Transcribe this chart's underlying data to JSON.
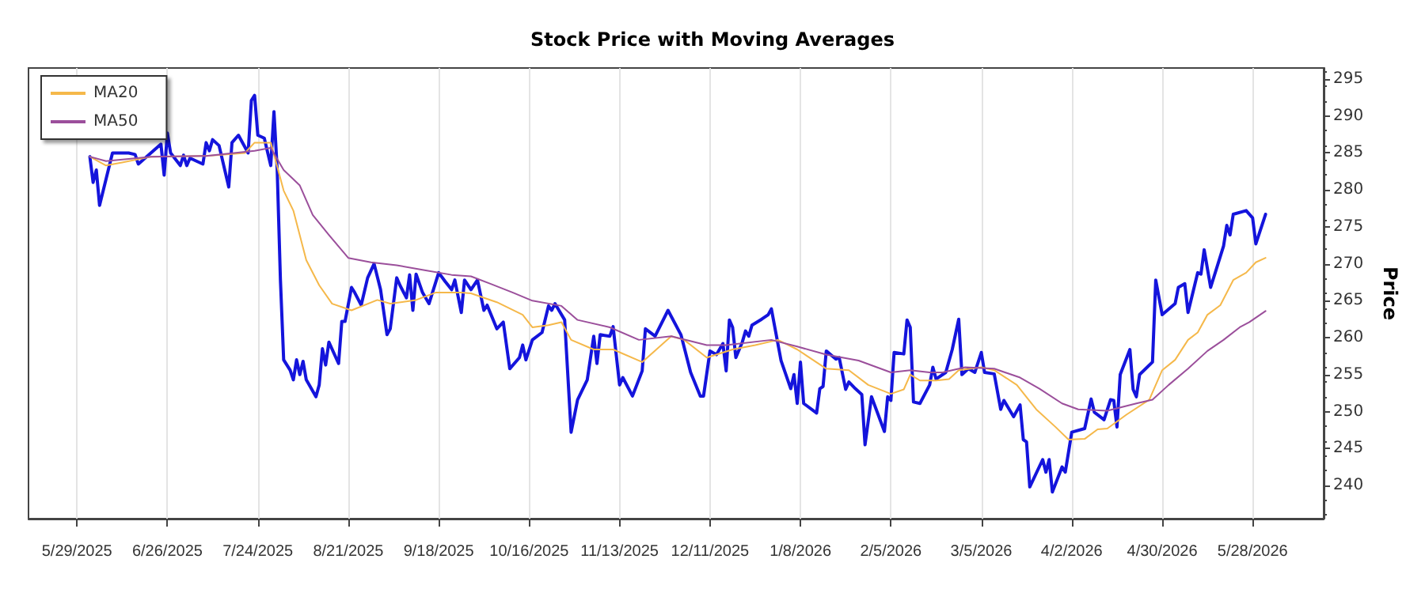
{
  "chart_data": {
    "type": "line",
    "title": "Stock Price with Moving Averages",
    "ylabel": "Price",
    "xlim": [
      "2025-05-14",
      "2026-06-19"
    ],
    "xticks": [
      {
        "value": "2025-05-29",
        "label": "5/29/2025"
      },
      {
        "value": "2025-06-26",
        "label": "6/26/2025"
      },
      {
        "value": "2025-07-24",
        "label": "7/24/2025"
      },
      {
        "value": "2025-08-21",
        "label": "8/21/2025"
      },
      {
        "value": "2025-09-18",
        "label": "9/18/2025"
      },
      {
        "value": "2025-10-16",
        "label": "10/16/2025"
      },
      {
        "value": "2025-11-13",
        "label": "11/13/2025"
      },
      {
        "value": "2025-12-11",
        "label": "12/11/2025"
      },
      {
        "value": "2026-01-08",
        "label": "1/8/2026"
      },
      {
        "value": "2026-02-05",
        "label": "2/5/2026"
      },
      {
        "value": "2026-03-05",
        "label": "3/5/2026"
      },
      {
        "value": "2026-04-02",
        "label": "4/2/2026"
      },
      {
        "value": "2026-04-30",
        "label": "4/30/2026"
      },
      {
        "value": "2026-05-28",
        "label": "5/28/2026"
      }
    ],
    "ylim": [
      235.5,
      296.5
    ],
    "yticks": [
      240,
      245,
      250,
      255,
      260,
      265,
      270,
      275,
      280,
      285,
      290,
      295
    ],
    "grid": "x",
    "legend": "top left",
    "marker": "none",
    "line_style": "solid",
    "series": [
      {
        "color": "#1414dc",
        "x": [
          "2025-06-02",
          "2025-06-03",
          "2025-06-04",
          "2025-06-05",
          "2025-06-09",
          "2025-06-12",
          "2025-06-14",
          "2025-06-16",
          "2025-06-17",
          "2025-06-24",
          "2025-06-25",
          "2025-06-26",
          "2025-06-27",
          "2025-06-30",
          "2025-07-01",
          "2025-07-02",
          "2025-07-03",
          "2025-07-07",
          "2025-07-08",
          "2025-07-09",
          "2025-07-10",
          "2025-07-12",
          "2025-07-15",
          "2025-07-16",
          "2025-07-18",
          "2025-07-21",
          "2025-07-22",
          "2025-07-23",
          "2025-07-24",
          "2025-07-26",
          "2025-07-28",
          "2025-07-29",
          "2025-07-30",
          "2025-07-31",
          "2025-08-01",
          "2025-08-03",
          "2025-08-04",
          "2025-08-05",
          "2025-08-06",
          "2025-08-07",
          "2025-08-08",
          "2025-08-11",
          "2025-08-12",
          "2025-08-13",
          "2025-08-14",
          "2025-08-15",
          "2025-08-18",
          "2025-08-19",
          "2025-08-20",
          "2025-08-22",
          "2025-08-23",
          "2025-08-25",
          "2025-08-27",
          "2025-08-29",
          "2025-08-31",
          "2025-09-02",
          "2025-09-03",
          "2025-09-05",
          "2025-09-06",
          "2025-09-08",
          "2025-09-09",
          "2025-09-10",
          "2025-09-11",
          "2025-09-13",
          "2025-09-15",
          "2025-09-18",
          "2025-09-20",
          "2025-09-22",
          "2025-09-23",
          "2025-09-25",
          "2025-09-26",
          "2025-09-28",
          "2025-09-30",
          "2025-10-02",
          "2025-10-03",
          "2025-10-06",
          "2025-10-08",
          "2025-10-10",
          "2025-10-13",
          "2025-10-14",
          "2025-10-15",
          "2025-10-17",
          "2025-10-20",
          "2025-10-22",
          "2025-10-23",
          "2025-10-24",
          "2025-10-27",
          "2025-10-29",
          "2025-10-31",
          "2025-11-03",
          "2025-11-05",
          "2025-11-06",
          "2025-11-07",
          "2025-11-10",
          "2025-11-11",
          "2025-11-13",
          "2025-11-14",
          "2025-11-17",
          "2025-11-20",
          "2025-11-21",
          "2025-11-24",
          "2025-11-28",
          "2025-12-02",
          "2025-12-05",
          "2025-12-08",
          "2025-12-09",
          "2025-12-11",
          "2025-12-13",
          "2025-12-15",
          "2025-12-16",
          "2025-12-17",
          "2025-12-18",
          "2025-12-19",
          "2025-12-21",
          "2025-12-22",
          "2025-12-23",
          "2025-12-24",
          "2025-12-27",
          "2025-12-29",
          "2025-12-30",
          "2026-01-02",
          "2026-01-05",
          "2026-01-06",
          "2026-01-07",
          "2026-01-08",
          "2026-01-09",
          "2026-01-13",
          "2026-01-14",
          "2026-01-15",
          "2026-01-16",
          "2026-01-19",
          "2026-01-20",
          "2026-01-22",
          "2026-01-23",
          "2026-01-25",
          "2026-01-27",
          "2026-01-28",
          "2026-01-30",
          "2026-02-03",
          "2026-02-04",
          "2026-02-05",
          "2026-02-06",
          "2026-02-09",
          "2026-02-10",
          "2026-02-11",
          "2026-02-12",
          "2026-02-14",
          "2026-02-17",
          "2026-02-18",
          "2026-02-19",
          "2026-02-22",
          "2026-02-24",
          "2026-02-26",
          "2026-02-27",
          "2026-03-01",
          "2026-03-03",
          "2026-03-05",
          "2026-03-06",
          "2026-03-09",
          "2026-03-11",
          "2026-03-12",
          "2026-03-15",
          "2026-03-17",
          "2026-03-18",
          "2026-03-19",
          "2026-03-20",
          "2026-03-24",
          "2026-03-25",
          "2026-03-26",
          "2026-03-27",
          "2026-03-30",
          "2026-03-31",
          "2026-04-02",
          "2026-04-06",
          "2026-04-08",
          "2026-04-09",
          "2026-04-12",
          "2026-04-14",
          "2026-04-15",
          "2026-04-16",
          "2026-04-17",
          "2026-04-20",
          "2026-04-21",
          "2026-04-22",
          "2026-04-23",
          "2026-04-27",
          "2026-04-28",
          "2026-04-30",
          "2026-05-04",
          "2026-05-05",
          "2026-05-07",
          "2026-05-08",
          "2026-05-11",
          "2026-05-12",
          "2026-05-13",
          "2026-05-15",
          "2026-05-19",
          "2026-05-20",
          "2026-05-21",
          "2026-05-22",
          "2026-05-26",
          "2026-05-28",
          "2026-05-29",
          "2026-06-01"
        ],
        "values": [
          284.5,
          281.0,
          282.7,
          277.9,
          285.0,
          285.0,
          285.0,
          284.8,
          283.5,
          286.2,
          282.0,
          287.7,
          285.0,
          283.3,
          284.7,
          283.3,
          284.3,
          283.5,
          286.4,
          285.3,
          286.8,
          286.0,
          280.4,
          286.4,
          287.4,
          285.0,
          292.1,
          292.8,
          287.4,
          287.0,
          283.3,
          290.6,
          282.7,
          267.8,
          257.0,
          255.6,
          254.3,
          257.0,
          255.0,
          256.8,
          254.3,
          252.0,
          253.6,
          258.5,
          256.3,
          259.4,
          256.5,
          262.2,
          262.2,
          266.8,
          266.1,
          264.4,
          268.1,
          270.0,
          266.5,
          260.4,
          261.2,
          268.1,
          267.1,
          265.4,
          268.5,
          263.7,
          268.6,
          266.1,
          264.6,
          268.8,
          267.6,
          266.5,
          267.8,
          263.4,
          267.8,
          266.5,
          267.8,
          263.7,
          264.4,
          261.2,
          262.1,
          255.8,
          257.3,
          259.0,
          257.0,
          259.7,
          260.7,
          264.3,
          263.7,
          264.6,
          262.4,
          247.2,
          251.6,
          254.3,
          260.2,
          256.5,
          260.4,
          260.2,
          261.5,
          253.6,
          254.6,
          252.1,
          255.5,
          261.2,
          260.2,
          263.7,
          260.4,
          255.3,
          252.1,
          252.1,
          258.2,
          257.7,
          259.2,
          255.5,
          262.4,
          261.4,
          257.3,
          259.4,
          260.9,
          260.2,
          261.7,
          262.5,
          263.1,
          263.9,
          256.9,
          253.1,
          255.0,
          251.1,
          256.7,
          251.1,
          249.8,
          253.1,
          253.4,
          258.2,
          257.1,
          257.3,
          253.0,
          254.0,
          253.1,
          252.3,
          245.5,
          252.0,
          247.3,
          252.0,
          251.5,
          258.0,
          257.8,
          262.4,
          261.4,
          251.3,
          251.1,
          253.6,
          256.0,
          254.4,
          255.3,
          258.4,
          262.5,
          255.0,
          255.8,
          255.3,
          258.0,
          255.3,
          255.1,
          250.3,
          251.5,
          249.3,
          250.9,
          246.2,
          245.9,
          239.8,
          243.5,
          241.8,
          243.5,
          239.1,
          242.5,
          241.8,
          247.2,
          247.7,
          251.7,
          249.9,
          248.9,
          251.6,
          251.5,
          247.9,
          255.0,
          258.4,
          253.0,
          252.0,
          255.0,
          256.7,
          267.8,
          263.1,
          264.6,
          266.8,
          267.3,
          263.4,
          268.8,
          268.6,
          271.9,
          266.8,
          272.4,
          275.2,
          273.9,
          276.7,
          277.2,
          276.2,
          272.7,
          276.7
        ]
      },
      {
        "name": "MA20",
        "color": "#f5b84a",
        "x": [
          "2025-06-02",
          "2025-06-07",
          "2025-06-12",
          "2025-06-21",
          "2025-07-08",
          "2025-07-20",
          "2025-07-23",
          "2025-07-28",
          "2025-08-01",
          "2025-08-04",
          "2025-08-08",
          "2025-08-12",
          "2025-08-16",
          "2025-08-22",
          "2025-08-30",
          "2025-09-03",
          "2025-09-11",
          "2025-09-17",
          "2025-09-25",
          "2025-09-28",
          "2025-10-06",
          "2025-10-14",
          "2025-10-17",
          "2025-10-22",
          "2025-10-26",
          "2025-10-29",
          "2025-11-05",
          "2025-11-11",
          "2025-11-20",
          "2025-11-29",
          "2025-12-03",
          "2025-12-10",
          "2025-12-18",
          "2025-12-25",
          "2026-01-01",
          "2026-01-07",
          "2026-01-16",
          "2026-01-23",
          "2026-01-29",
          "2026-02-05",
          "2026-02-09",
          "2026-02-11",
          "2026-02-14",
          "2026-02-19",
          "2026-02-23",
          "2026-02-26",
          "2026-03-05",
          "2026-03-09",
          "2026-03-16",
          "2026-03-22",
          "2026-03-28",
          "2026-04-01",
          "2026-04-06",
          "2026-04-10",
          "2026-04-13",
          "2026-04-19",
          "2026-04-26",
          "2026-04-30",
          "2026-05-04",
          "2026-05-08",
          "2026-05-11",
          "2026-05-14",
          "2026-05-18",
          "2026-05-22",
          "2026-05-26",
          "2026-05-29",
          "2026-06-01"
        ],
        "values": [
          284.5,
          283.3,
          283.7,
          284.5,
          284.6,
          285.0,
          286.4,
          286.4,
          279.9,
          277.2,
          270.5,
          267.1,
          264.6,
          263.7,
          265.1,
          264.6,
          265.1,
          266.1,
          266.1,
          266.0,
          264.8,
          263.1,
          261.4,
          261.7,
          262.1,
          259.7,
          258.4,
          258.4,
          256.7,
          260.2,
          259.7,
          257.3,
          258.4,
          259.0,
          259.7,
          258.4,
          255.8,
          255.6,
          253.6,
          252.4,
          253.0,
          255.0,
          254.2,
          254.2,
          254.4,
          255.6,
          256.0,
          255.6,
          253.6,
          250.3,
          247.9,
          246.2,
          246.3,
          247.6,
          247.7,
          249.6,
          251.6,
          255.6,
          257.0,
          259.7,
          260.7,
          263.1,
          264.4,
          267.8,
          268.8,
          270.2,
          270.8
        ]
      },
      {
        "name": "MA50",
        "color": "#9b4f9b",
        "x": [
          "2025-06-02",
          "2025-06-07",
          "2025-06-21",
          "2025-07-08",
          "2025-07-23",
          "2025-07-28",
          "2025-08-01",
          "2025-08-06",
          "2025-08-10",
          "2025-08-15",
          "2025-08-21",
          "2025-08-28",
          "2025-09-05",
          "2025-09-14",
          "2025-09-22",
          "2025-09-28",
          "2025-10-04",
          "2025-10-11",
          "2025-10-17",
          "2025-10-26",
          "2025-10-31",
          "2025-11-10",
          "2025-11-19",
          "2025-11-29",
          "2025-12-10",
          "2025-12-16",
          "2025-12-30",
          "2026-01-07",
          "2026-01-16",
          "2026-01-26",
          "2026-02-05",
          "2026-02-11",
          "2026-02-17",
          "2026-02-21",
          "2026-02-28",
          "2026-03-09",
          "2026-03-17",
          "2026-03-23",
          "2026-03-30",
          "2026-04-04",
          "2026-04-13",
          "2026-04-22",
          "2026-04-27",
          "2026-05-02",
          "2026-05-08",
          "2026-05-14",
          "2026-05-19",
          "2026-05-24",
          "2026-05-27",
          "2026-06-01"
        ],
        "values": [
          284.5,
          283.9,
          284.5,
          284.6,
          285.3,
          285.7,
          282.7,
          280.6,
          276.6,
          273.9,
          270.8,
          270.2,
          269.8,
          269.1,
          268.5,
          268.3,
          267.3,
          266.1,
          265.0,
          264.3,
          262.4,
          261.4,
          259.7,
          260.2,
          259.0,
          259.0,
          259.7,
          258.8,
          257.7,
          256.9,
          255.3,
          255.6,
          255.3,
          255.3,
          256.0,
          255.8,
          254.6,
          253.1,
          251.1,
          250.3,
          250.1,
          251.1,
          251.6,
          253.6,
          255.8,
          258.2,
          259.7,
          261.4,
          262.1,
          263.6
        ]
      }
    ]
  }
}
